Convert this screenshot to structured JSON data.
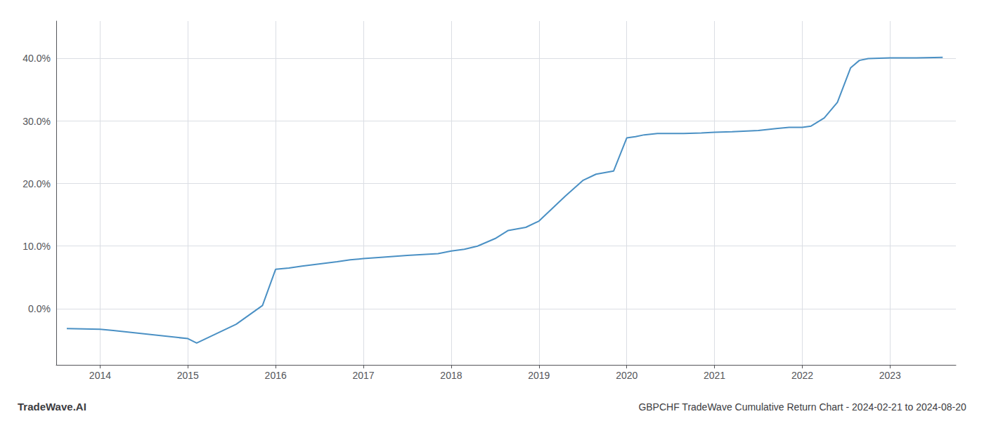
{
  "chart_data": {
    "type": "line",
    "title": "GBPCHF TradeWave Cumulative Return Chart - 2024-02-21 to 2024-08-20",
    "annotations": [
      "TradeWave.AI"
    ],
    "color": "#4a90c4",
    "grid": true,
    "x": [
      2013.62,
      2014.0,
      2014.15,
      2015.0,
      2015.1,
      2015.55,
      2015.85,
      2016.0,
      2016.15,
      2016.3,
      2016.7,
      2016.85,
      2017.0,
      2017.2,
      2017.5,
      2017.85,
      2018.0,
      2018.15,
      2018.3,
      2018.5,
      2018.65,
      2018.85,
      2019.0,
      2019.15,
      2019.3,
      2019.5,
      2019.65,
      2019.85,
      2020.0,
      2020.1,
      2020.2,
      2020.35,
      2020.5,
      2020.65,
      2020.85,
      2021.0,
      2021.2,
      2021.5,
      2021.7,
      2021.85,
      2022.0,
      2022.1,
      2022.25,
      2022.4,
      2022.55,
      2022.65,
      2022.75,
      2023.0,
      2023.3,
      2023.6
    ],
    "values": [
      -3.2,
      -3.3,
      -3.5,
      -4.8,
      -5.5,
      -2.5,
      0.5,
      6.3,
      6.5,
      6.8,
      7.5,
      7.8,
      8.0,
      8.2,
      8.5,
      8.8,
      9.2,
      9.5,
      10.0,
      11.2,
      12.5,
      13.0,
      14.0,
      16.0,
      18.0,
      20.5,
      21.5,
      22.0,
      27.3,
      27.5,
      27.8,
      28.0,
      28.0,
      28.0,
      28.1,
      28.2,
      28.3,
      28.5,
      28.8,
      29.0,
      29.0,
      29.2,
      30.5,
      33.0,
      38.5,
      39.7,
      40.0,
      40.1,
      40.1,
      40.2
    ],
    "xlim": [
      2013.5,
      2023.75
    ],
    "ylim": [
      -9,
      46
    ],
    "xticks": [
      2014,
      2015,
      2016,
      2017,
      2018,
      2019,
      2020,
      2021,
      2022,
      2023
    ],
    "yticks": [
      {
        "value": 0.0,
        "label": "0.0%"
      },
      {
        "value": 10.0,
        "label": "10.0%"
      },
      {
        "value": 20.0,
        "label": "20.0%"
      },
      {
        "value": 30.0,
        "label": "30.0%"
      },
      {
        "value": 40.0,
        "label": "40.0%"
      }
    ]
  }
}
